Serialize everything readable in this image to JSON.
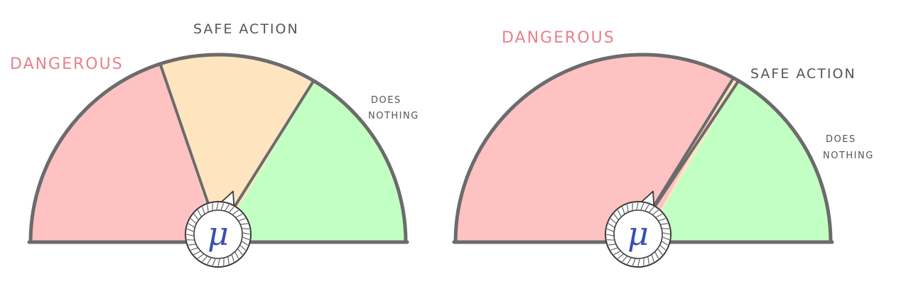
{
  "colors": {
    "dangerous": "#ffc2c2",
    "safe_action": "#ffe4c0",
    "does_nothing": "#c2ffc2",
    "outline": "#6b6b6b",
    "danger_text": "#e8808c",
    "mu": "#3a4fb0"
  },
  "dials": [
    {
      "region_shares": {
        "dangerous": 0.4,
        "safe_action": 0.27,
        "does_nothing": 0.33
      },
      "labels": {
        "dangerous": "DANGEROUS",
        "safe_action": "SAFE ACTION",
        "does_nothing_line1": "DOES",
        "does_nothing_line2": "NOTHING"
      },
      "knob_symbol": "μ"
    },
    {
      "region_shares": {
        "dangerous": 0.66,
        "safe_action": 0.01,
        "does_nothing": 0.33
      },
      "labels": {
        "dangerous": "DANGEROUS",
        "safe_action": "SAFE ACTION",
        "does_nothing_line1": "DOES",
        "does_nothing_line2": "NOTHING"
      },
      "knob_symbol": "μ"
    }
  ]
}
